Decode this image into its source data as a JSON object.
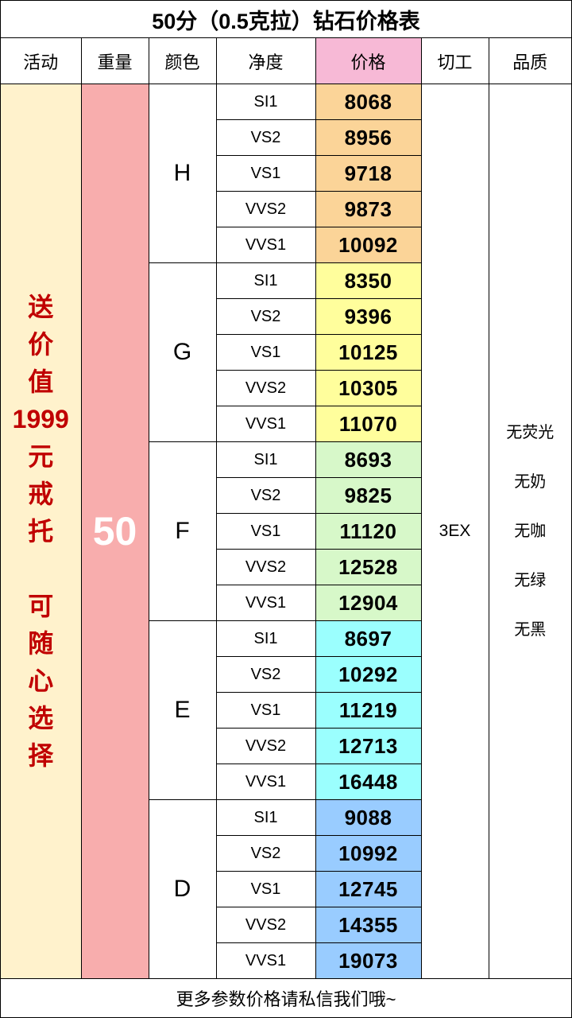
{
  "title": "50分（0.5克拉）钻石价格表",
  "headers": {
    "activity": "活动",
    "weight": "重量",
    "color": "颜色",
    "clarity": "净度",
    "price": "价格",
    "cut": "切工",
    "quality": "品质"
  },
  "promo_lines": [
    "送",
    "价",
    "值",
    "1999",
    "元",
    "戒",
    "托",
    "",
    "可",
    "随",
    "心",
    "选",
    "择"
  ],
  "weight_value": "50",
  "cut_value": "3EX",
  "quality_items": [
    "无荧光",
    "无奶",
    "无咖",
    "无绿",
    "无黑"
  ],
  "colors": {
    "H": "#fbd498",
    "G": "#fffe9c",
    "F": "#d7f8c9",
    "E": "#9bfffe",
    "D": "#99ccff",
    "price_header": "#f7b9d6",
    "promo_bg": "#fff2cc",
    "promo_text": "#c00000",
    "weight_bg": "#f8adad"
  },
  "groups": [
    {
      "color": "H",
      "rows": [
        {
          "clarity": "SI1",
          "price": "8068"
        },
        {
          "clarity": "VS2",
          "price": "8956"
        },
        {
          "clarity": "VS1",
          "price": "9718"
        },
        {
          "clarity": "VVS2",
          "price": "9873"
        },
        {
          "clarity": "VVS1",
          "price": "10092"
        }
      ]
    },
    {
      "color": "G",
      "rows": [
        {
          "clarity": "SI1",
          "price": "8350"
        },
        {
          "clarity": "VS2",
          "price": "9396"
        },
        {
          "clarity": "VS1",
          "price": "10125"
        },
        {
          "clarity": "VVS2",
          "price": "10305"
        },
        {
          "clarity": "VVS1",
          "price": "11070"
        }
      ]
    },
    {
      "color": "F",
      "rows": [
        {
          "clarity": "SI1",
          "price": "8693"
        },
        {
          "clarity": "VS2",
          "price": "9825"
        },
        {
          "clarity": "VS1",
          "price": "11120"
        },
        {
          "clarity": "VVS2",
          "price": "12528"
        },
        {
          "clarity": "VVS1",
          "price": "12904"
        }
      ]
    },
    {
      "color": "E",
      "rows": [
        {
          "clarity": "SI1",
          "price": "8697"
        },
        {
          "clarity": "VS2",
          "price": "10292"
        },
        {
          "clarity": "VS1",
          "price": "11219"
        },
        {
          "clarity": "VVS2",
          "price": "12713"
        },
        {
          "clarity": "VVS1",
          "price": "16448"
        }
      ]
    },
    {
      "color": "D",
      "rows": [
        {
          "clarity": "SI1",
          "price": "9088"
        },
        {
          "clarity": "VS2",
          "price": "10992"
        },
        {
          "clarity": "VS1",
          "price": "12745"
        },
        {
          "clarity": "VVS2",
          "price": "14355"
        },
        {
          "clarity": "VVS1",
          "price": "19073"
        }
      ]
    }
  ],
  "footer": "更多参数价格请私信我们哦~"
}
